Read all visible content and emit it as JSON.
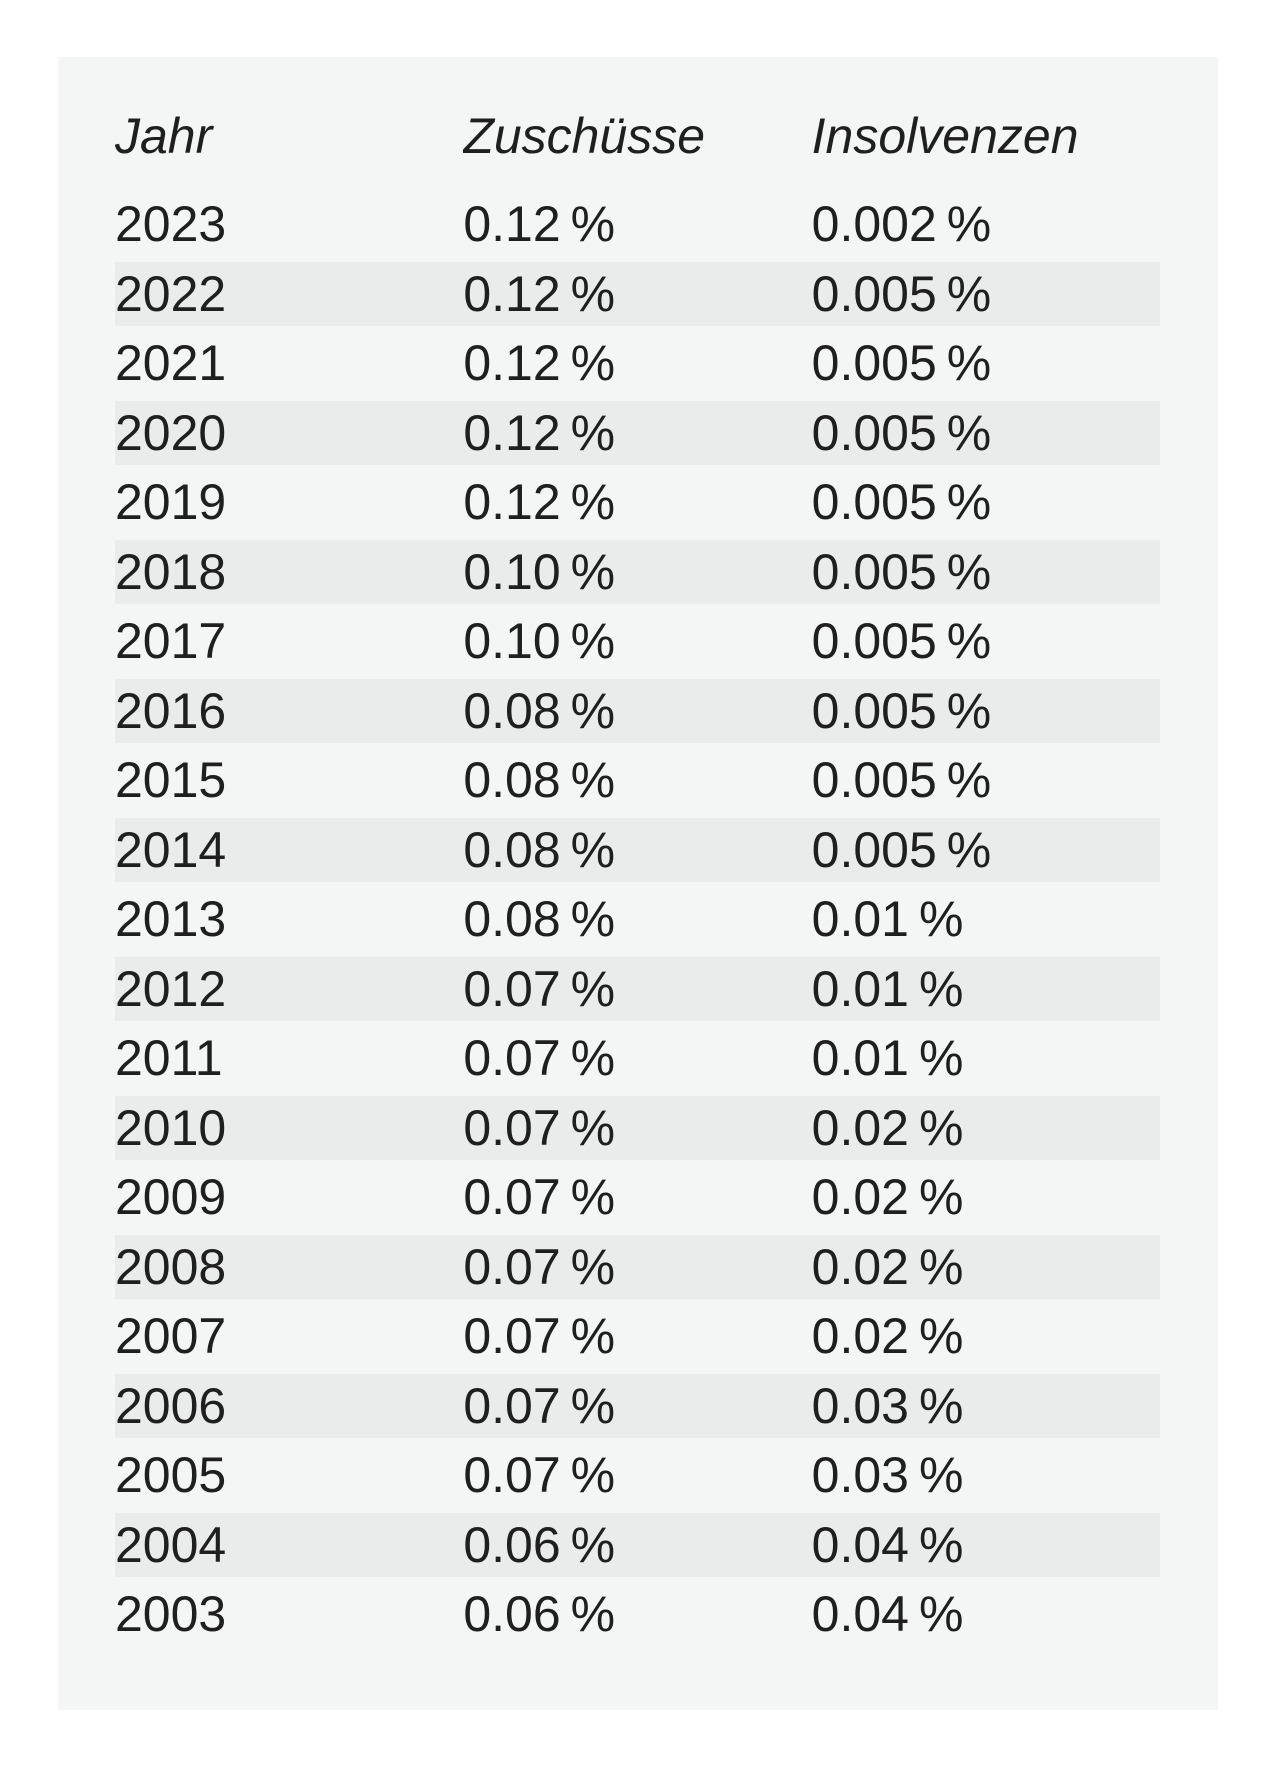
{
  "colors": {
    "page": "#ffffff",
    "panel": "#f4f5f5",
    "stripe": "#eaebeb",
    "text": "#1f1f1f"
  },
  "chart_data": {
    "type": "table",
    "columns": [
      "Jahr",
      "Zuschüsse",
      "Insolvenzen"
    ],
    "rows": [
      [
        "2023",
        "0.12 %",
        "0.002 %"
      ],
      [
        "2022",
        "0.12 %",
        "0.005 %"
      ],
      [
        "2021",
        "0.12 %",
        "0.005 %"
      ],
      [
        "2020",
        "0.12 %",
        "0.005 %"
      ],
      [
        "2019",
        "0.12 %",
        "0.005 %"
      ],
      [
        "2018",
        "0.10 %",
        "0.005 %"
      ],
      [
        "2017",
        "0.10 %",
        "0.005 %"
      ],
      [
        "2016",
        "0.08 %",
        "0.005 %"
      ],
      [
        "2015",
        "0.08 %",
        "0.005 %"
      ],
      [
        "2014",
        "0.08 %",
        "0.005 %"
      ],
      [
        "2013",
        "0.08 %",
        "0.01 %"
      ],
      [
        "2012",
        "0.07 %",
        "0.01 %"
      ],
      [
        "2011",
        "0.07 %",
        "0.01 %"
      ],
      [
        "2010",
        "0.07 %",
        "0.02 %"
      ],
      [
        "2009",
        "0.07 %",
        "0.02 %"
      ],
      [
        "2008",
        "0.07 %",
        "0.02 %"
      ],
      [
        "2007",
        "0.07 %",
        "0.02 %"
      ],
      [
        "2006",
        "0.07 %",
        "0.03 %"
      ],
      [
        "2005",
        "0.07 %",
        "0.03 %"
      ],
      [
        "2004",
        "0.06 %",
        "0.04 %"
      ],
      [
        "2003",
        "0.06 %",
        "0.04 %"
      ]
    ],
    "categories": [
      2023,
      2022,
      2021,
      2020,
      2019,
      2018,
      2017,
      2016,
      2015,
      2014,
      2013,
      2012,
      2011,
      2010,
      2009,
      2008,
      2007,
      2006,
      2005,
      2004,
      2003
    ],
    "series": [
      {
        "name": "Zuschüsse",
        "unit": "%",
        "values": [
          0.12,
          0.12,
          0.12,
          0.12,
          0.12,
          0.1,
          0.1,
          0.08,
          0.08,
          0.08,
          0.08,
          0.07,
          0.07,
          0.07,
          0.07,
          0.07,
          0.07,
          0.07,
          0.07,
          0.06,
          0.06
        ]
      },
      {
        "name": "Insolvenzen",
        "unit": "%",
        "values": [
          0.002,
          0.005,
          0.005,
          0.005,
          0.005,
          0.005,
          0.005,
          0.005,
          0.005,
          0.005,
          0.01,
          0.01,
          0.01,
          0.02,
          0.02,
          0.02,
          0.02,
          0.03,
          0.03,
          0.04,
          0.04
        ]
      }
    ],
    "layout": {
      "grid": "off",
      "row_striping": "alternate",
      "align": "left"
    }
  }
}
